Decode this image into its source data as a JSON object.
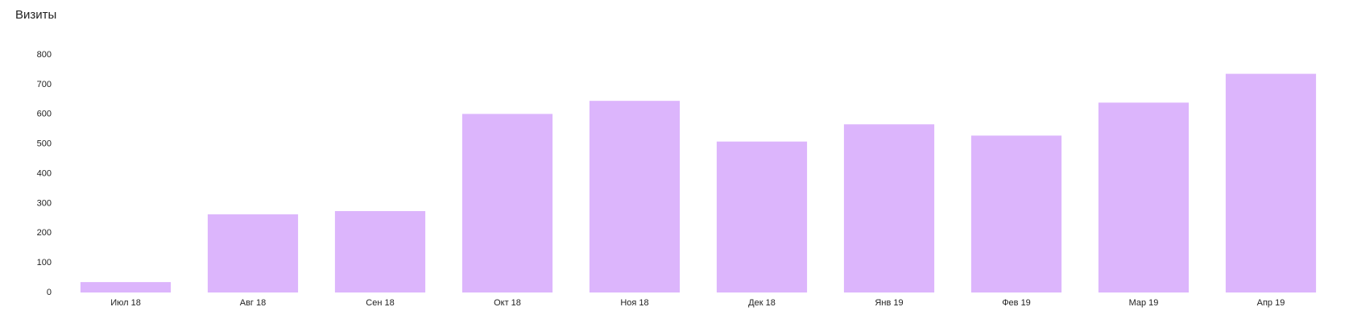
{
  "chart_data": {
    "type": "bar",
    "title": "Визиты",
    "categories": [
      "Июл 18",
      "Авг 18",
      "Сен 18",
      "Окт 18",
      "Ноя 18",
      "Дек 18",
      "Янв 19",
      "Фев 19",
      "Мар 19",
      "Апр 19"
    ],
    "values": [
      35,
      263,
      274,
      601,
      645,
      508,
      566,
      528,
      639,
      736
    ],
    "color": "#dcb5fc",
    "ylim": [
      0,
      800
    ],
    "yticks": [
      0,
      100,
      200,
      300,
      400,
      500,
      600,
      700,
      800
    ],
    "grid": false
  }
}
